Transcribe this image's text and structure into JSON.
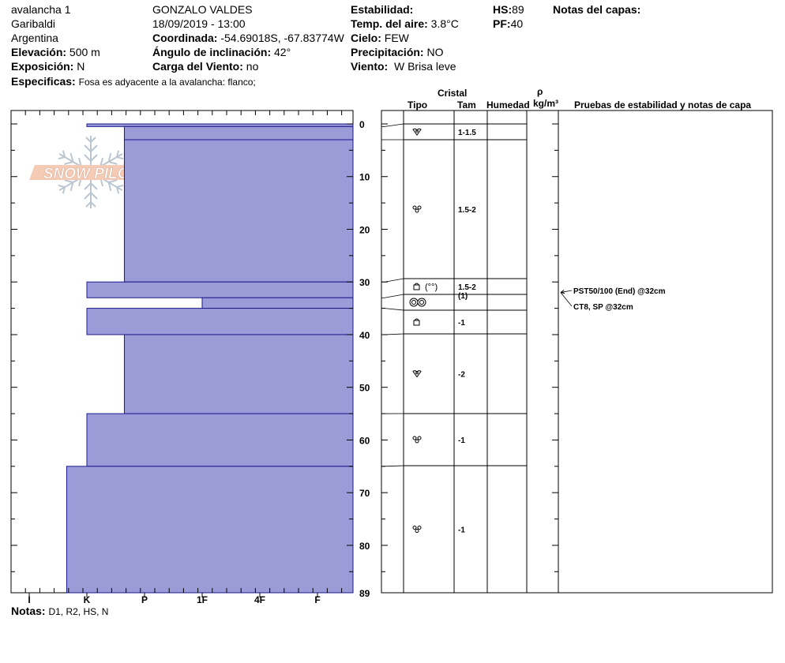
{
  "header": {
    "location_name": "avalancha 1",
    "region": "Garibaldi",
    "country": "Argentina",
    "observer": "GONZALO VALDES",
    "datetime": "18/09/2019 - 13:00",
    "elevation_label": "Elevación:",
    "elevation_value": "500 m",
    "exposure_label": "Exposición:",
    "exposure_value": "N",
    "coord_label": "Coordinada:",
    "coord_value": "-54.69018S, -67.83774W",
    "slope_label": "Ángulo de inclinación:",
    "slope_value": "42°",
    "wind_load_label": "Carga del Viento:",
    "wind_load_value": "no",
    "stability_label": "Estabilidad:",
    "air_temp_label": "Temp. del aire:",
    "air_temp_value": "3.8°C",
    "sky_label": "Cielo:",
    "sky_value": "FEW",
    "precip_label": "Precipitación:",
    "precip_value": "NO",
    "wind_label": "Viento:",
    "wind_value": "W Brisa leve",
    "hs_label": "HS:",
    "hs_value": "89",
    "pf_label": "PF:",
    "pf_value": "40",
    "layer_notes_label": "Notas del capas:",
    "specifics_label": "Especificas:",
    "specifics_value": "Fosa es adyacente a la avalancha: flanco;"
  },
  "logo": {
    "text": "SNOW PILOT"
  },
  "columns": {
    "crystal": "Cristal",
    "type": "Tipo",
    "size": "Tam",
    "moisture": "Humedad",
    "density_symbol": "ρ",
    "density_unit": "kg/m³",
    "tests": "Pruebas de estabilidad y notas de capa"
  },
  "notes": {
    "label": "Notas:",
    "value": "D1, R2, HS, N"
  },
  "chart_data": {
    "type": "bar",
    "orientation": "horizontal",
    "y_axis": {
      "label": "",
      "range": [
        0,
        89
      ],
      "ticks": [
        0,
        10,
        20,
        30,
        40,
        50,
        60,
        70,
        80,
        89
      ]
    },
    "x_axis": {
      "label": "",
      "categories": [
        "I",
        "K",
        "P",
        "1F",
        "4F",
        "F"
      ]
    },
    "layers": [
      {
        "top": 0,
        "bottom": 0.5,
        "hardness_index": 1.0,
        "size": "",
        "crystal": ""
      },
      {
        "top": 0.5,
        "bottom": 3,
        "hardness_index": 1.65,
        "size": "1-1.5",
        "crystal": "decomposing"
      },
      {
        "top": 3,
        "bottom": 30,
        "hardness_index": 1.65,
        "size": "1.5-2",
        "crystal": "rounded"
      },
      {
        "top": 30,
        "bottom": 33,
        "hardness_index": 1.0,
        "size": "1.5-2",
        "size2": "(1)",
        "crystal": "faceted (rounded)"
      },
      {
        "top": 33,
        "bottom": 35,
        "hardness_index": 3.0,
        "size": "",
        "crystal": "melt-freeze"
      },
      {
        "top": 35,
        "bottom": 40,
        "hardness_index": 1.0,
        "size": "-1",
        "crystal": "faceted"
      },
      {
        "top": 40,
        "bottom": 55,
        "hardness_index": 1.65,
        "size": "-2",
        "crystal": "decomposing"
      },
      {
        "top": 55,
        "bottom": 65,
        "hardness_index": 1.0,
        "size": "-1",
        "crystal": "rounded"
      },
      {
        "top": 65,
        "bottom": 89,
        "hardness_index": 0.65,
        "size": "-1",
        "crystal": "rounded"
      }
    ],
    "tests": [
      {
        "text": "PST50/100 (End) @32cm",
        "depth": 32
      },
      {
        "text": "CT8, SP @32cm",
        "depth": 32
      }
    ],
    "colors": {
      "bar_fill": "#9b9bd7",
      "bar_stroke": "#1a1a8c"
    }
  }
}
